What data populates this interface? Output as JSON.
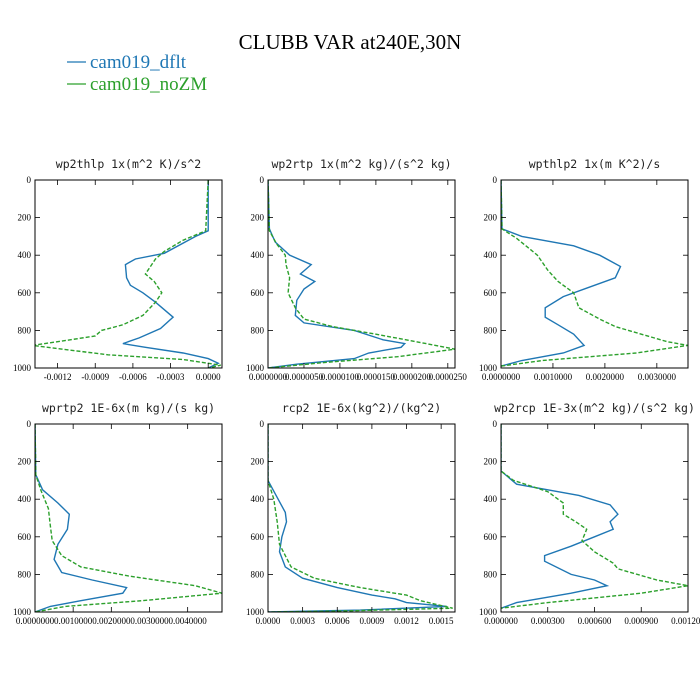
{
  "figure_title": "CLUBB VAR at240E,30N",
  "legend": [
    {
      "label": "cam019_dflt",
      "color": "#1f77b4"
    },
    {
      "label": "cam019_noZM",
      "color": "#2ca02c"
    }
  ],
  "colors": {
    "dflt": "#1f77b4",
    "noZM": "#2ca02c"
  },
  "chart_data": [
    {
      "type": "line",
      "title": "wp2thlp   1x(m^2 K)/s^2",
      "xlim": [
        -0.00138,
        0.00011
      ],
      "ylim": [
        0,
        1000
      ],
      "y_inverted": true,
      "xticks": [
        -0.0012,
        -0.0009,
        -0.0006,
        -0.0003,
        0.0
      ],
      "xtick_labels": [
        "-0.0012",
        "-0.0009",
        "-0.0006",
        "-0.0003",
        "0.0000"
      ],
      "yticks": [
        0,
        200,
        400,
        600,
        800,
        1000
      ],
      "ytick_labels": [
        "0",
        "200",
        "400",
        "600",
        "800",
        "1000"
      ],
      "series": [
        {
          "name": "cam019_dflt",
          "style": "solid",
          "points": [
            [
              0,
              0
            ],
            [
              0,
              270
            ],
            [
              -0.0001,
              300
            ],
            [
              -0.00035,
              390
            ],
            [
              -0.00058,
              420
            ],
            [
              -0.00066,
              450
            ],
            [
              -0.00065,
              520
            ],
            [
              -0.00062,
              560
            ],
            [
              -0.00052,
              600
            ],
            [
              -0.00042,
              650
            ],
            [
              -0.00028,
              730
            ],
            [
              -0.00038,
              790
            ],
            [
              -0.00055,
              840
            ],
            [
              -0.00068,
              870
            ],
            [
              -0.0005,
              890
            ],
            [
              -0.0002,
              920
            ],
            [
              0.0,
              950
            ],
            [
              8e-05,
              975
            ],
            [
              0.0,
              1000
            ]
          ]
        },
        {
          "name": "cam019_noZM",
          "style": "dashed",
          "points": [
            [
              0,
              0
            ],
            [
              -2e-05,
              270
            ],
            [
              -0.0002,
              320
            ],
            [
              -0.00035,
              380
            ],
            [
              -0.00042,
              420
            ],
            [
              -0.0005,
              500
            ],
            [
              -0.00043,
              540
            ],
            [
              -0.00037,
              600
            ],
            [
              -0.00042,
              650
            ],
            [
              -0.00052,
              720
            ],
            [
              -0.00068,
              770
            ],
            [
              -0.00085,
              800
            ],
            [
              -0.0009,
              830
            ],
            [
              -0.0012,
              860
            ],
            [
              -0.0014,
              880
            ],
            [
              -0.0008,
              930
            ],
            [
              -0.0002,
              955
            ],
            [
              0.0001,
              985
            ],
            [
              0.0,
              1000
            ]
          ]
        }
      ]
    },
    {
      "type": "line",
      "title": "wp2rtp   1x(m^2 kg)/(s^2 kg)",
      "xlim": [
        0.0,
        2.6e-05
      ],
      "ylim": [
        0,
        1000
      ],
      "y_inverted": true,
      "xticks": [
        0.0,
        5e-06,
        1e-05,
        1.5e-05,
        2e-05,
        2.5e-05
      ],
      "xtick_labels": [
        "0.0000000",
        "0.0000050",
        "0.0000100",
        "0.0000150",
        "0.0000200",
        "0.0000250"
      ],
      "yticks": [
        0,
        200,
        400,
        600,
        800,
        1000
      ],
      "ytick_labels": [
        "0",
        "200",
        "400",
        "600",
        "800",
        "1000"
      ],
      "series": [
        {
          "name": "cam019_dflt",
          "style": "solid",
          "points": [
            [
              0,
              0
            ],
            [
              2e-07,
              260
            ],
            [
              1e-06,
              330
            ],
            [
              3e-06,
              400
            ],
            [
              6e-06,
              450
            ],
            [
              4.5e-06,
              500
            ],
            [
              6.5e-06,
              540
            ],
            [
              5e-06,
              580
            ],
            [
              4e-06,
              640
            ],
            [
              3.8e-06,
              720
            ],
            [
              5e-06,
              760
            ],
            [
              1.2e-05,
              800
            ],
            [
              1.6e-05,
              850
            ],
            [
              1.9e-05,
              870
            ],
            [
              1.85e-05,
              890
            ],
            [
              1.4e-05,
              920
            ],
            [
              1.2e-05,
              950
            ],
            [
              4e-06,
              980
            ],
            [
              0.0,
              1000
            ]
          ]
        },
        {
          "name": "cam019_noZM",
          "style": "dashed",
          "points": [
            [
              0,
              0
            ],
            [
              2e-07,
              270
            ],
            [
              1.2e-06,
              340
            ],
            [
              2.4e-06,
              400
            ],
            [
              2.5e-06,
              450
            ],
            [
              3e-06,
              520
            ],
            [
              2.8e-06,
              600
            ],
            [
              3.8e-06,
              680
            ],
            [
              5e-06,
              740
            ],
            [
              9e-06,
              780
            ],
            [
              1.5e-05,
              820
            ],
            [
              2.2e-05,
              870
            ],
            [
              2.6e-05,
              900
            ],
            [
              1.8e-05,
              940
            ],
            [
              8e-06,
              970
            ],
            [
              0.0,
              1000
            ]
          ]
        }
      ]
    },
    {
      "type": "line",
      "title": "wpthlp2   1x(m K^2)/s",
      "xlim": [
        0.0,
        0.0036
      ],
      "ylim": [
        0,
        1000
      ],
      "y_inverted": true,
      "xticks": [
        0.0,
        0.001,
        0.002,
        0.003
      ],
      "xtick_labels": [
        "0.0000000",
        "0.0010000",
        "0.0020000",
        "0.0030000"
      ],
      "yticks": [
        0,
        200,
        400,
        600,
        800,
        1000
      ],
      "ytick_labels": [
        "0",
        "200",
        "400",
        "600",
        "800",
        "1000"
      ],
      "series": [
        {
          "name": "cam019_dflt",
          "style": "solid",
          "points": [
            [
              0,
              0
            ],
            [
              2e-05,
              260
            ],
            [
              0.0004,
              300
            ],
            [
              0.0014,
              350
            ],
            [
              0.0019,
              400
            ],
            [
              0.0023,
              460
            ],
            [
              0.0022,
              520
            ],
            [
              0.0017,
              570
            ],
            [
              0.0012,
              620
            ],
            [
              0.00085,
              680
            ],
            [
              0.00085,
              730
            ],
            [
              0.0011,
              770
            ],
            [
              0.0014,
              820
            ],
            [
              0.0016,
              880
            ],
            [
              0.0012,
              920
            ],
            [
              0.0004,
              960
            ],
            [
              0.0,
              990
            ]
          ]
        },
        {
          "name": "cam019_noZM",
          "style": "dashed",
          "points": [
            [
              0,
              0
            ],
            [
              2e-05,
              260
            ],
            [
              0.0003,
              310
            ],
            [
              0.0007,
              400
            ],
            [
              0.0009,
              480
            ],
            [
              0.0011,
              540
            ],
            [
              0.0014,
              600
            ],
            [
              0.0015,
              680
            ],
            [
              0.0019,
              740
            ],
            [
              0.0022,
              780
            ],
            [
              0.0032,
              860
            ],
            [
              0.0036,
              880
            ],
            [
              0.0026,
              920
            ],
            [
              0.0008,
              960
            ],
            [
              0.0,
              990
            ]
          ]
        }
      ]
    },
    {
      "type": "line",
      "title": "wprtp2   1E-6x(m kg)/(s kg)",
      "xlim": [
        0.0,
        0.0049
      ],
      "ylim": [
        0,
        1000
      ],
      "y_inverted": true,
      "xticks": [
        0.0,
        0.001,
        0.002,
        0.003,
        0.004
      ],
      "xtick_labels": [
        "0.0000000",
        "0.0010000",
        "0.0020000",
        "0.0030000",
        "0.0040000"
      ],
      "yticks": [
        0,
        200,
        400,
        600,
        800,
        1000
      ],
      "ytick_labels": [
        "0",
        "200",
        "400",
        "600",
        "800",
        "1000"
      ],
      "series": [
        {
          "name": "cam019_dflt",
          "style": "solid",
          "points": [
            [
              0,
              0
            ],
            [
              2e-05,
              270
            ],
            [
              0.0002,
              350
            ],
            [
              0.0006,
              420
            ],
            [
              0.0009,
              480
            ],
            [
              0.00085,
              560
            ],
            [
              0.0006,
              640
            ],
            [
              0.0005,
              720
            ],
            [
              0.0007,
              790
            ],
            [
              0.0015,
              830
            ],
            [
              0.0024,
              870
            ],
            [
              0.0023,
              900
            ],
            [
              0.0012,
              940
            ],
            [
              0.0004,
              970
            ],
            [
              0.0,
              1000
            ]
          ]
        },
        {
          "name": "cam019_noZM",
          "style": "dashed",
          "points": [
            [
              0,
              0
            ],
            [
              2e-05,
              270
            ],
            [
              0.00015,
              350
            ],
            [
              0.00035,
              450
            ],
            [
              0.0004,
              540
            ],
            [
              0.00045,
              620
            ],
            [
              0.0007,
              700
            ],
            [
              0.0012,
              760
            ],
            [
              0.0025,
              810
            ],
            [
              0.0042,
              860
            ],
            [
              0.0049,
              900
            ],
            [
              0.0028,
              940
            ],
            [
              0.0008,
              970
            ],
            [
              0.0,
              1000
            ]
          ]
        }
      ]
    },
    {
      "type": "line",
      "title": "rcp2   1E-6x(kg^2)/(kg^2)",
      "xlim": [
        0.0,
        0.00162
      ],
      "ylim": [
        0,
        1000
      ],
      "y_inverted": true,
      "xticks": [
        0.0,
        0.0003,
        0.0006,
        0.0009,
        0.0012,
        0.0015
      ],
      "xtick_labels": [
        "0.0000",
        "0.0003",
        "0.0006",
        "0.0009",
        "0.0012",
        "0.0015"
      ],
      "yticks": [
        0,
        200,
        400,
        600,
        800,
        1000
      ],
      "ytick_labels": [
        "0",
        "200",
        "400",
        "600",
        "800",
        "1000"
      ],
      "series": [
        {
          "name": "cam019_dflt",
          "style": "solid",
          "points": [
            [
              0,
              0
            ],
            [
              0.0,
              300
            ],
            [
              7e-05,
              380
            ],
            [
              0.00015,
              470
            ],
            [
              0.00016,
              520
            ],
            [
              0.00012,
              600
            ],
            [
              0.0001,
              680
            ],
            [
              0.00015,
              760
            ],
            [
              0.0003,
              820
            ],
            [
              0.0006,
              870
            ],
            [
              0.0009,
              910
            ],
            [
              0.0011,
              930
            ],
            [
              0.0012,
              950
            ],
            [
              0.00155,
              970
            ],
            [
              0.0008,
              990
            ],
            [
              0.0,
              1000
            ]
          ]
        },
        {
          "name": "cam019_noZM",
          "style": "dashed",
          "points": [
            [
              0,
              0
            ],
            [
              0.0,
              300
            ],
            [
              5e-05,
              400
            ],
            [
              8e-05,
              520
            ],
            [
              0.0001,
              640
            ],
            [
              0.0002,
              760
            ],
            [
              0.0004,
              820
            ],
            [
              0.0008,
              870
            ],
            [
              0.0012,
              910
            ],
            [
              0.00132,
              940
            ],
            [
              0.0016,
              980
            ],
            [
              0.0006,
              995
            ],
            [
              0.0,
              1000
            ]
          ]
        }
      ]
    },
    {
      "type": "line",
      "title": "wp2rcp   1E-3x(m^2 kg)/(s^2 kg)",
      "xlim": [
        0.0,
        0.0012
      ],
      "ylim": [
        0,
        1000
      ],
      "y_inverted": true,
      "xticks": [
        0.0,
        0.0003,
        0.0006,
        0.0009,
        0.0012
      ],
      "xtick_labels": [
        "0.000000",
        "0.000300",
        "0.000600",
        "0.000900",
        "0.001200"
      ],
      "yticks": [
        0,
        200,
        400,
        600,
        800,
        1000
      ],
      "ytick_labels": [
        "0",
        "200",
        "400",
        "600",
        "800",
        "1000"
      ],
      "series": [
        {
          "name": "cam019_dflt",
          "style": "solid",
          "points": [
            [
              0,
              0
            ],
            [
              0.0,
              250
            ],
            [
              0.0001,
              320
            ],
            [
              0.0005,
              380
            ],
            [
              0.0007,
              430
            ],
            [
              0.00075,
              480
            ],
            [
              0.0007,
              520
            ],
            [
              0.00072,
              560
            ],
            [
              0.0006,
              600
            ],
            [
              0.00045,
              650
            ],
            [
              0.00028,
              700
            ],
            [
              0.00028,
              730
            ],
            [
              0.00045,
              800
            ],
            [
              0.0006,
              830
            ],
            [
              0.00068,
              860
            ],
            [
              0.00045,
              900
            ],
            [
              0.0001,
              950
            ],
            [
              0.0,
              980
            ]
          ]
        },
        {
          "name": "cam019_noZM",
          "style": "dashed",
          "points": [
            [
              0,
              0
            ],
            [
              0.0,
              250
            ],
            [
              8e-05,
              300
            ],
            [
              0.0003,
              360
            ],
            [
              0.0004,
              420
            ],
            [
              0.0004,
              480
            ],
            [
              0.00048,
              520
            ],
            [
              0.00055,
              560
            ],
            [
              0.00052,
              620
            ],
            [
              0.0006,
              680
            ],
            [
              0.00072,
              740
            ],
            [
              0.00075,
              770
            ],
            [
              0.001,
              830
            ],
            [
              0.0012,
              860
            ],
            [
              0.0009,
              900
            ],
            [
              0.0003,
              950
            ],
            [
              0.0,
              980
            ]
          ]
        }
      ]
    }
  ]
}
